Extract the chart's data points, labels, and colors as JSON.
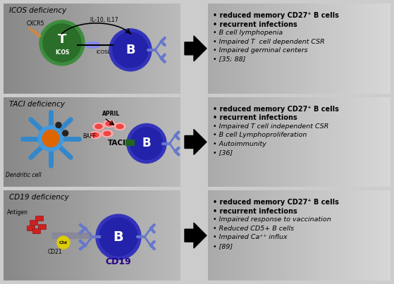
{
  "background_color": "#cccccc",
  "rows": [
    {
      "title": "ICOS deficiency",
      "bullets_bold": [
        "reduced memory CD27⁺ B cells",
        "recurrent infections"
      ],
      "bullets_italic": [
        "B cell lymphopenia",
        "Impaired T  cell dependent CSR",
        "Impaired germinal centers",
        "[35; 88]"
      ]
    },
    {
      "title": "TACI deficiency",
      "bullets_bold": [
        "reduced memory CD27⁺ B cells",
        "recurrent infections"
      ],
      "bullets_italic": [
        "Impaired T cell independent CSR",
        "B cell Lymphoproliferation",
        "Autoimmunity",
        "[36]"
      ]
    },
    {
      "title": "CD19 deficiency",
      "bullets_bold": [
        "reduced memory CD27⁺ B cells",
        "recurrent infections"
      ],
      "bullets_italic": [
        "Impaired response to vaccination",
        "Reduced CD5+ B cells",
        "Impaired Ca⁺⁺ influx",
        "[89]"
      ]
    }
  ],
  "figsize": [
    5.59,
    4.03
  ],
  "dpi": 100
}
